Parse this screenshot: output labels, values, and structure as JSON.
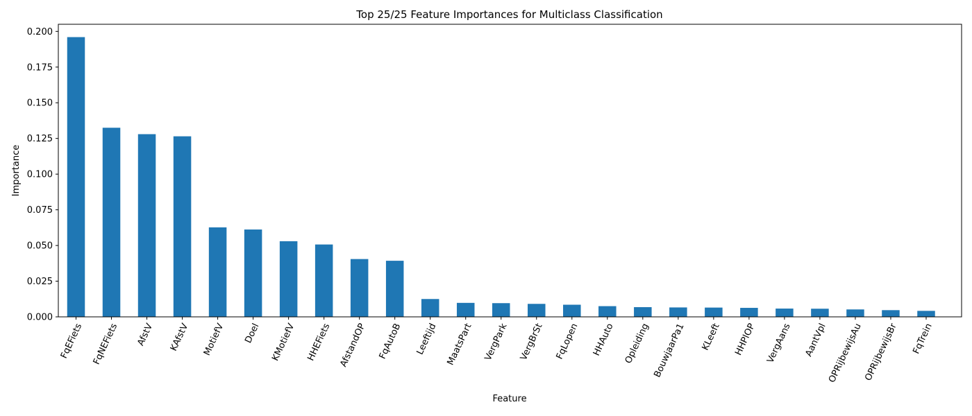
{
  "chart_data": {
    "type": "bar",
    "title": "Top 25/25 Feature Importances for Multiclass Classification",
    "xlabel": "Feature",
    "ylabel": "Importance",
    "ylim": [
      0,
      0.205
    ],
    "yticks": [
      "0.000",
      "0.025",
      "0.050",
      "0.075",
      "0.100",
      "0.125",
      "0.150",
      "0.175",
      "0.200"
    ],
    "grid": false,
    "bar_color": "#1f77b4",
    "categories": [
      "FqEFiets",
      "FqNEFiets",
      "AfstV",
      "KAfstV",
      "MotiefV",
      "Doel",
      "KMotiefV",
      "HHEFiets",
      "AfstandOP",
      "FqAutoB",
      "Leeftijd",
      "MaatsPart",
      "VergPark",
      "VergBrSt",
      "FqLopen",
      "HHAuto",
      "Opleiding",
      "BouwjaarPa1",
      "KLeeft",
      "HHPlOP",
      "VergAans",
      "AantVpl",
      "OPRijbewijsAu",
      "OPRijbewijsBr",
      "FqTrein"
    ],
    "values": [
      0.196,
      0.1325,
      0.128,
      0.1265,
      0.0627,
      0.0612,
      0.053,
      0.0507,
      0.0405,
      0.0393,
      0.0125,
      0.0098,
      0.0096,
      0.0091,
      0.0085,
      0.0075,
      0.0068,
      0.0066,
      0.0065,
      0.0063,
      0.0058,
      0.0057,
      0.0052,
      0.0047,
      0.0042
    ]
  }
}
